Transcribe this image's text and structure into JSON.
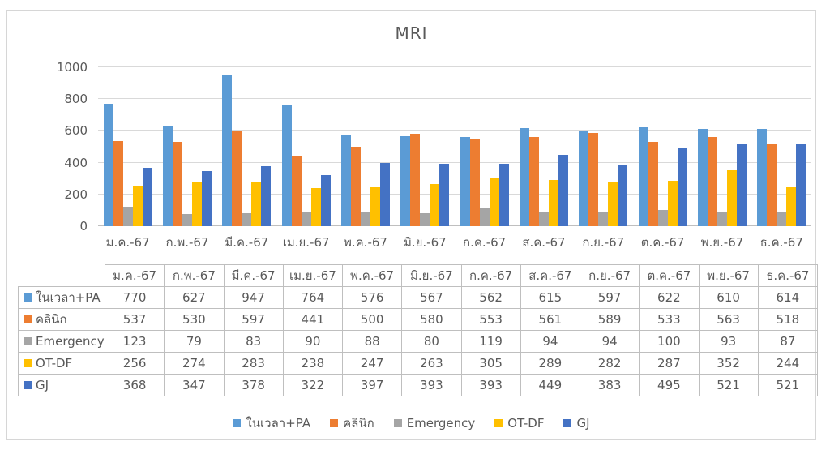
{
  "chart_data": {
    "type": "bar",
    "title": "MRI",
    "xlabel": "",
    "ylabel": "",
    "ylim": [
      0,
      1000
    ],
    "yticks": [
      0,
      200,
      400,
      600,
      800,
      1000
    ],
    "grid": true,
    "legend_position": "bottom",
    "categories": [
      "ม.ค.-67",
      "ก.พ.-67",
      "มี.ค.-67",
      "เม.ย.-67",
      "พ.ค.-67",
      "มิ.ย.-67",
      "ก.ค.-67",
      "ส.ค.-67",
      "ก.ย.-67",
      "ต.ค.-67",
      "พ.ย.-67",
      "ธ.ค.-67"
    ],
    "series": [
      {
        "name": "ในเวลา+PA",
        "color": "#5B9BD5",
        "values": [
          770,
          627,
          947,
          764,
          576,
          567,
          562,
          615,
          597,
          622,
          610,
          614
        ]
      },
      {
        "name": "คลินิก",
        "color": "#ED7D31",
        "values": [
          537,
          530,
          597,
          441,
          500,
          580,
          553,
          561,
          589,
          533,
          563,
          518
        ]
      },
      {
        "name": "Emergency",
        "color": "#A5A5A5",
        "values": [
          123,
          79,
          83,
          90,
          88,
          80,
          119,
          94,
          94,
          100,
          93,
          87
        ]
      },
      {
        "name": "OT-DF",
        "color": "#FFC000",
        "values": [
          256,
          274,
          283,
          238,
          247,
          263,
          305,
          289,
          282,
          287,
          352,
          244
        ]
      },
      {
        "name": "GJ",
        "color": "#4472C4",
        "values": [
          368,
          347,
          378,
          322,
          397,
          393,
          393,
          449,
          383,
          495,
          521,
          521
        ]
      }
    ],
    "colors": {
      "gridline": "#D9D9D9",
      "axis_line": "#BFBFBF",
      "text": "#595959",
      "table_border": "#BFBFBF",
      "frame_border": "#D6D6D6",
      "background": "#FFFFFF"
    },
    "data_table_shown": true
  }
}
